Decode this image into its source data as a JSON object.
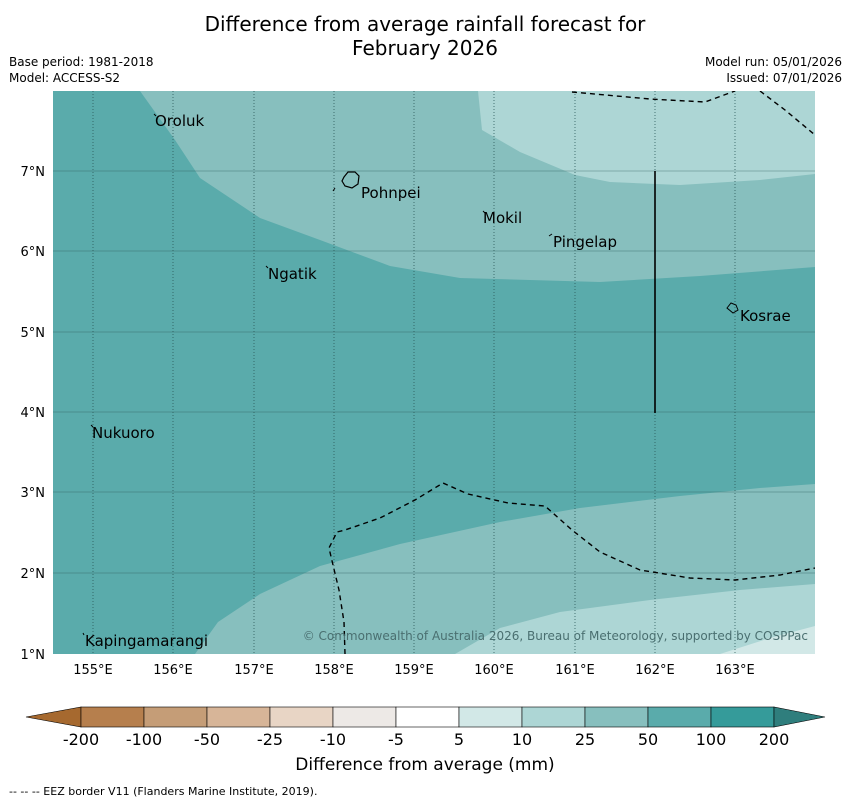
{
  "title_line1": "Difference from average rainfall forecast for",
  "title_line2": "February 2026",
  "base_period": "Base period: 1981-2018",
  "model": "Model: ACCESS-S2",
  "model_run": "Model run: 05/01/2026",
  "issued": "Issued: 07/01/2026",
  "copyright": "© Commonwealth of Australia 2026, Bureau of Meteorology, supported by COSPPac",
  "colorbar_label": "Difference from average (mm)",
  "eez_note": "--  --  -- EEZ border V11 (Flanders Marine Institute, 2019).",
  "lon_ticks": [
    "155°E",
    "156°E",
    "157°E",
    "158°E",
    "159°E",
    "160°E",
    "161°E",
    "162°E",
    "163°E"
  ],
  "lat_ticks": [
    "1°N",
    "2°N",
    "3°N",
    "4°N",
    "5°N",
    "6°N",
    "7°N"
  ],
  "places": [
    {
      "name": "Oroluk"
    },
    {
      "name": "Pohnpei"
    },
    {
      "name": "Mokil"
    },
    {
      "name": "Pingelap"
    },
    {
      "name": "Ngatik"
    },
    {
      "name": "Kosrae"
    },
    {
      "name": "Nukuoro"
    },
    {
      "name": "Kapingamarangi"
    }
  ],
  "colorbar": {
    "ticks": [
      "-200",
      "-100",
      "-50",
      "-25",
      "-10",
      "-5",
      "5",
      "10",
      "25",
      "50",
      "100",
      "200"
    ],
    "colors": [
      "#a6692f",
      "#b67f4d",
      "#c59d77",
      "#d7b598",
      "#e8d5c5",
      "#ede9e6",
      "#ffffff",
      "#d2e8e7",
      "#add6d5",
      "#87bfbe",
      "#5aabab",
      "#359b9a",
      "#2f7e7d"
    ]
  },
  "colors": {
    "class_50_100": "#5aabab",
    "class_25_50": "#87bfbe",
    "class_10_25": "#add6d5",
    "class_5_10": "#d2e8e7"
  }
}
